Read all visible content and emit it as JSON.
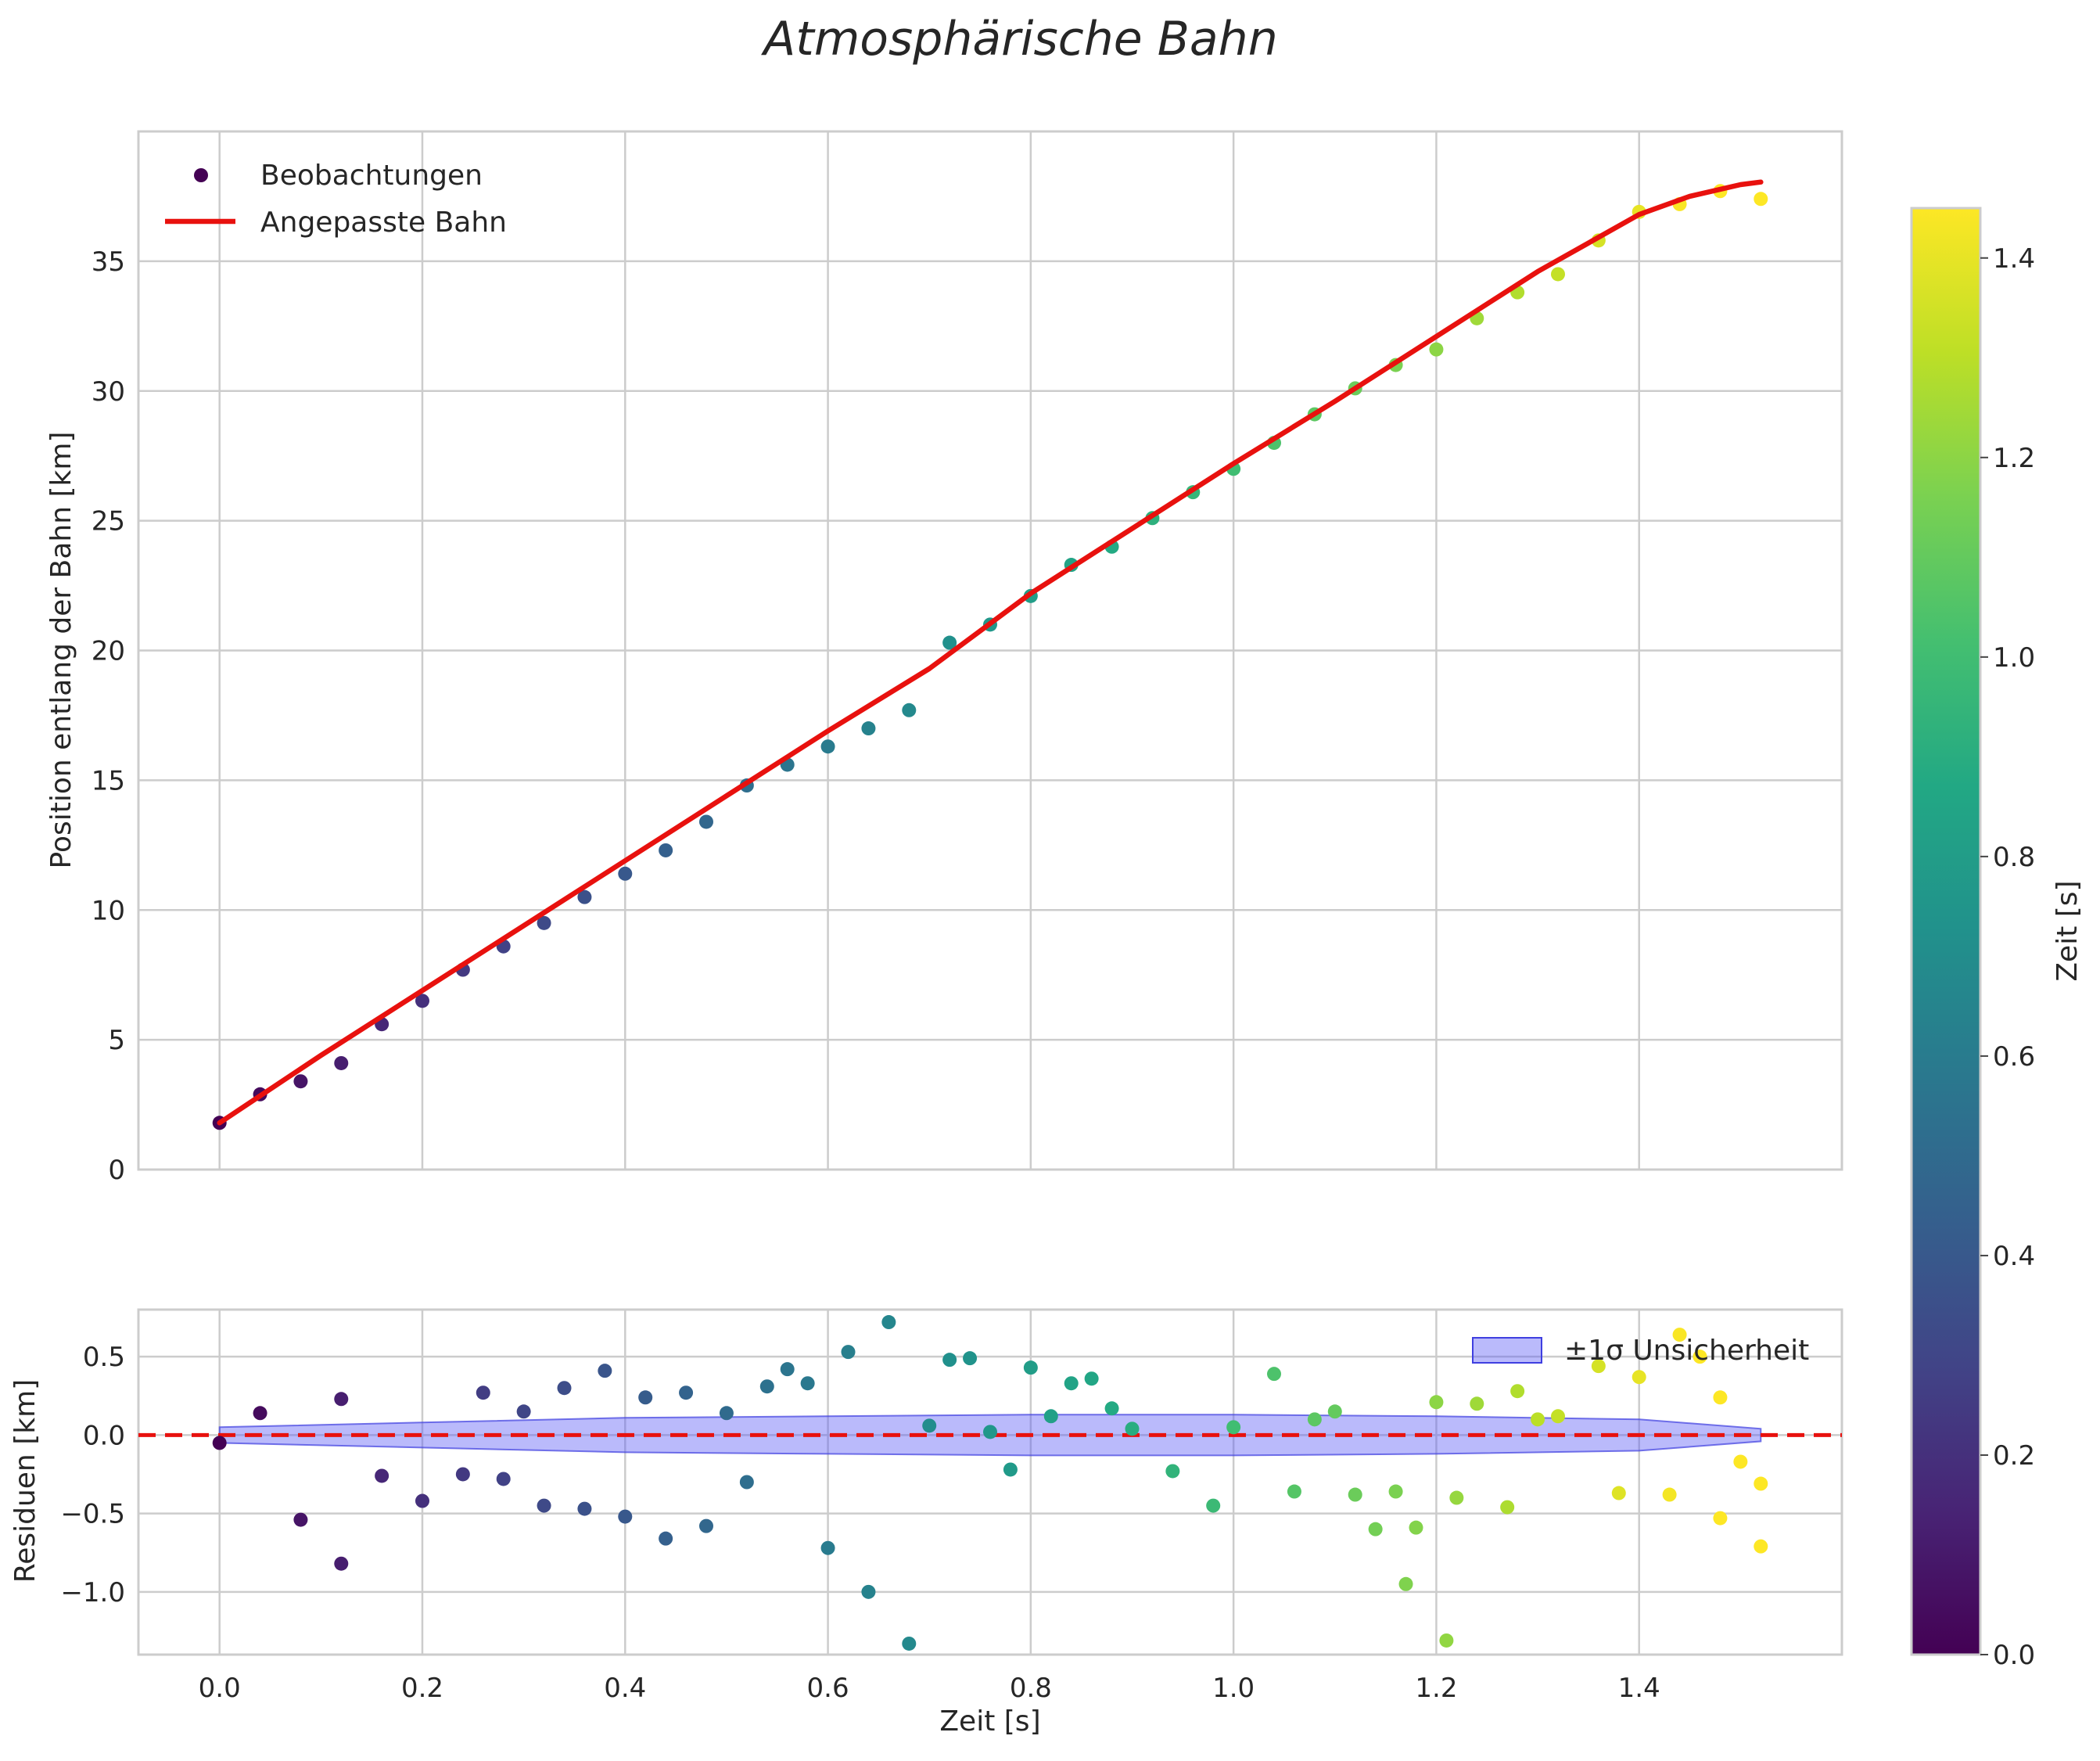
{
  "chart_data": [
    {
      "type": "scatter",
      "title": "Atmosphärische Bahn",
      "xlabel": "",
      "ylabel": "Position entlang der Bahn [km]",
      "xlim": [
        -0.08,
        1.6
      ],
      "ylim": [
        0,
        40
      ],
      "xticks": [
        0.0,
        0.2,
        0.4,
        0.6,
        0.8,
        1.0,
        1.2,
        1.4
      ],
      "yticks": [
        0,
        5,
        10,
        15,
        20,
        25,
        30,
        35
      ],
      "ytick_labels": [
        "0",
        "5",
        "10",
        "15",
        "20",
        "25",
        "30",
        "35"
      ],
      "grid": true,
      "legend": {
        "placement": "top-left",
        "entries": [
          "Beobachtungen",
          "Angepasste Bahn"
        ]
      },
      "series": [
        {
          "name": "Beobachtungen",
          "kind": "scatter",
          "color_by": "x",
          "x": [
            0.0,
            0.04,
            0.08,
            0.12,
            0.16,
            0.2,
            0.24,
            0.28,
            0.32,
            0.36,
            0.4,
            0.44,
            0.48,
            0.52,
            0.56,
            0.6,
            0.64,
            0.68,
            0.72,
            0.76,
            0.8,
            0.84,
            0.88,
            0.92,
            0.96,
            1.0,
            1.04,
            1.08,
            1.12,
            1.16,
            1.2,
            1.24,
            1.28,
            1.32,
            1.36,
            1.4,
            1.44,
            1.48,
            1.52
          ],
          "y": [
            1.8,
            2.9,
            3.4,
            4.1,
            5.6,
            6.5,
            7.7,
            8.6,
            9.5,
            10.5,
            11.4,
            12.3,
            13.4,
            14.8,
            15.6,
            16.3,
            17.0,
            17.7,
            20.3,
            21.0,
            22.1,
            23.3,
            24.0,
            25.1,
            26.1,
            27.0,
            28.0,
            29.1,
            30.1,
            31.0,
            31.6,
            32.8,
            33.8,
            34.5,
            35.8,
            36.9,
            37.2,
            37.7,
            37.4
          ]
        },
        {
          "name": "Angepasste Bahn",
          "kind": "line",
          "color": "#e8110e",
          "x": [
            0.0,
            0.1,
            0.2,
            0.3,
            0.4,
            0.5,
            0.6,
            0.7,
            0.8,
            0.9,
            1.0,
            1.1,
            1.2,
            1.3,
            1.4,
            1.45,
            1.5,
            1.52
          ],
          "y": [
            1.8,
            4.4,
            6.9,
            9.4,
            11.9,
            14.4,
            16.9,
            19.3,
            22.2,
            24.7,
            27.2,
            29.6,
            32.1,
            34.6,
            36.8,
            37.5,
            37.95,
            38.05
          ]
        }
      ]
    },
    {
      "type": "scatter",
      "title": "",
      "xlabel": "Zeit [s]",
      "ylabel": "Residuen [km]",
      "xlim": [
        -0.08,
        1.6
      ],
      "ylim": [
        -1.4,
        0.8
      ],
      "xticks": [
        0.0,
        0.2,
        0.4,
        0.6,
        0.8,
        1.0,
        1.2,
        1.4
      ],
      "xtick_labels": [
        "0.0",
        "0.2",
        "0.4",
        "0.6",
        "0.8",
        "1.0",
        "1.2",
        "1.4"
      ],
      "yticks": [
        0.5,
        0.0,
        -0.5,
        -1.0
      ],
      "ytick_labels": [
        "0.5",
        "0.0",
        "−0.5",
        "−1.0"
      ],
      "grid": true,
      "legend": {
        "placement": "top-right",
        "entries": [
          "±1σ Unsicherheit"
        ]
      },
      "zero_line": {
        "y": 0.0,
        "style": "dashed",
        "color": "#e8110e"
      },
      "band": {
        "name": "±1σ Unsicherheit",
        "x": [
          0.0,
          0.2,
          0.4,
          0.6,
          0.8,
          1.0,
          1.2,
          1.4,
          1.52
        ],
        "lower": [
          -0.05,
          -0.08,
          -0.11,
          -0.12,
          -0.13,
          -0.13,
          -0.12,
          -0.1,
          -0.04
        ],
        "upper": [
          0.05,
          0.08,
          0.11,
          0.12,
          0.13,
          0.13,
          0.12,
          0.1,
          0.04
        ]
      },
      "series": [
        {
          "name": "Residuen",
          "kind": "scatter",
          "color_by": "x",
          "x": [
            0.0,
            0.04,
            0.08,
            0.12,
            0.12,
            0.16,
            0.2,
            0.24,
            0.26,
            0.28,
            0.3,
            0.32,
            0.34,
            0.36,
            0.38,
            0.4,
            0.42,
            0.44,
            0.46,
            0.48,
            0.5,
            0.52,
            0.54,
            0.56,
            0.58,
            0.6,
            0.62,
            0.64,
            0.66,
            0.68,
            0.7,
            0.72,
            0.74,
            0.76,
            0.78,
            0.8,
            0.82,
            0.84,
            0.86,
            0.88,
            0.9,
            0.94,
            0.98,
            1.0,
            1.04,
            1.06,
            1.08,
            1.1,
            1.12,
            1.14,
            1.16,
            1.17,
            1.18,
            1.2,
            1.21,
            1.22,
            1.24,
            1.27,
            1.28,
            1.3,
            1.32,
            1.36,
            1.38,
            1.4,
            1.43,
            1.44,
            1.46,
            1.48,
            1.48,
            1.5,
            1.52,
            1.52
          ],
          "y": [
            -0.05,
            0.14,
            -0.54,
            0.23,
            -0.82,
            -0.26,
            -0.42,
            -0.25,
            0.27,
            -0.28,
            0.15,
            -0.45,
            0.3,
            -0.47,
            0.41,
            -0.52,
            0.24,
            -0.66,
            0.27,
            -0.58,
            0.14,
            -0.3,
            0.31,
            0.42,
            0.33,
            -0.72,
            0.53,
            -1.0,
            0.72,
            -1.33,
            0.06,
            0.48,
            0.49,
            0.02,
            -0.22,
            0.43,
            0.12,
            0.33,
            0.36,
            0.17,
            0.04,
            -0.23,
            -0.45,
            0.05,
            0.39,
            -0.36,
            0.1,
            0.15,
            -0.38,
            -0.6,
            -0.36,
            -0.95,
            -0.59,
            0.21,
            -1.31,
            -0.4,
            0.2,
            -0.46,
            0.28,
            0.1,
            0.12,
            0.44,
            -0.37,
            0.37,
            -0.38,
            0.64,
            0.5,
            0.24,
            -0.53,
            -0.17,
            -0.31,
            -0.71
          ]
        }
      ]
    }
  ],
  "colorbar": {
    "label": "Zeit [s]",
    "colormap": "viridis",
    "range": [
      0.0,
      1.45
    ],
    "ticks": [
      0.0,
      0.2,
      0.4,
      0.6,
      0.8,
      1.0,
      1.2,
      1.4
    ],
    "tick_labels": [
      "0.0",
      "0.2",
      "0.4",
      "0.6",
      "0.8",
      "1.0",
      "1.2",
      "1.4"
    ]
  }
}
